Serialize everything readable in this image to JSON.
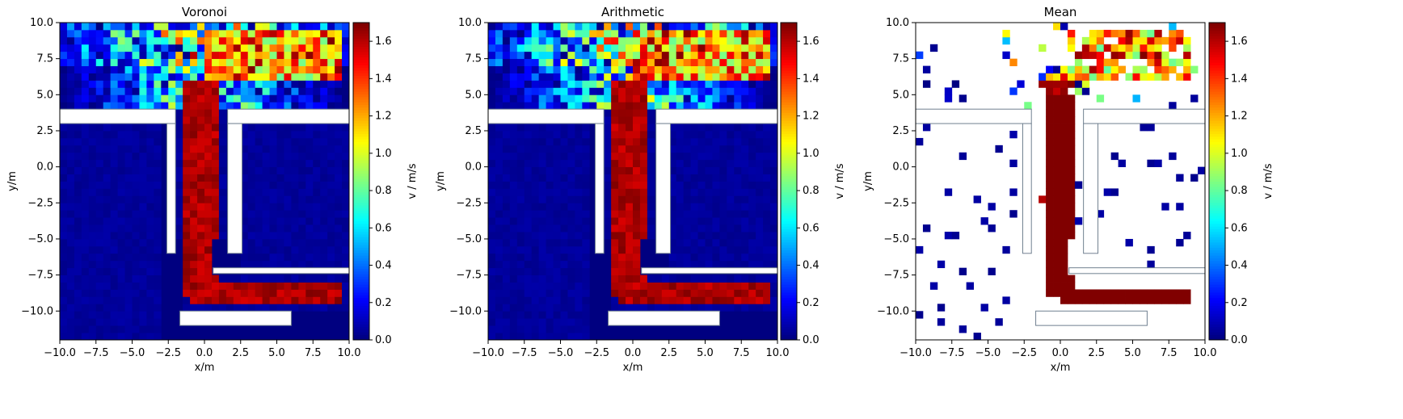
{
  "chart_data": [
    {
      "type": "heatmap",
      "title": "Voronoi",
      "xlabel": "x/m",
      "ylabel": "y/m",
      "xlim": [
        -10,
        10
      ],
      "ylim": [
        -12,
        10
      ],
      "xticks": [
        "−10.0",
        "−7.5",
        "−5.0",
        "−2.5",
        "0.0",
        "2.5",
        "5.0",
        "7.5",
        "10.0"
      ],
      "yticks": [
        "10.0",
        "7.5",
        "5.0",
        "2.5",
        "0.0",
        "−2.5",
        "−5.0",
        "−7.5",
        "−10.0"
      ],
      "colormap": "jet",
      "mode": "voronoi",
      "colorbar": {
        "label": "v / m/s",
        "range": [
          0,
          1.7
        ],
        "ticks": [
          "0.0",
          "0.2",
          "0.4",
          "0.6",
          "0.8",
          "1.0",
          "1.2",
          "1.4",
          "1.6"
        ]
      }
    },
    {
      "type": "heatmap",
      "title": "Arithmetic",
      "xlabel": "x/m",
      "ylabel": "y/m",
      "xlim": [
        -10,
        10
      ],
      "ylim": [
        -12,
        10
      ],
      "xticks": [
        "−10.0",
        "−7.5",
        "−5.0",
        "−2.5",
        "0.0",
        "2.5",
        "5.0",
        "7.5",
        "10.0"
      ],
      "yticks": [
        "10.0",
        "7.5",
        "5.0",
        "2.5",
        "0.0",
        "−2.5",
        "−5.0",
        "−7.5",
        "−10.0"
      ],
      "colormap": "jet",
      "mode": "arith",
      "colorbar": {
        "label": "v / m/s",
        "range": [
          0,
          1.7
        ],
        "ticks": [
          "0.0",
          "0.2",
          "0.4",
          "0.6",
          "0.8",
          "1.0",
          "1.2",
          "1.4",
          "1.6"
        ]
      }
    },
    {
      "type": "heatmap",
      "title": "Mean",
      "xlabel": "x/m",
      "ylabel": "y/m",
      "xlim": [
        -10,
        10
      ],
      "ylim": [
        -12,
        10
      ],
      "xticks": [
        "−10.0",
        "−7.5",
        "−5.0",
        "−2.5",
        "0.0",
        "2.5",
        "5.0",
        "7.5",
        "10.0"
      ],
      "yticks": [
        "10.0",
        "7.5",
        "5.0",
        "2.5",
        "0.0",
        "−2.5",
        "−5.0",
        "−7.5",
        "−10.0"
      ],
      "colormap": "jet",
      "mode": "mean",
      "colorbar": {
        "label": "v / m/s",
        "range": [
          0,
          1.7
        ],
        "ticks": [
          "0.0",
          "0.2",
          "0.4",
          "0.6",
          "0.8",
          "1.0",
          "1.2",
          "1.4",
          "1.6"
        ]
      }
    }
  ],
  "geometry_walls": {
    "corridor_outline": [
      [
        -10,
        4
      ],
      [
        -2,
        4
      ],
      [
        -2,
        -5
      ],
      [
        -2.5,
        -5
      ],
      [
        -2.5,
        -6
      ],
      [
        -1.7,
        -6
      ],
      [
        -1.7,
        -11
      ],
      [
        6,
        -11
      ],
      [
        6,
        -10
      ],
      [
        -0.8,
        -10
      ],
      [
        -0.8,
        -5
      ],
      [
        0.6,
        -5
      ],
      [
        0.6,
        -7.4
      ],
      [
        10,
        -7.4
      ],
      [
        10,
        -7
      ],
      [
        1.5,
        -7
      ],
      [
        1.5,
        -6
      ],
      [
        2.5,
        -6
      ],
      [
        2.5,
        -5
      ],
      [
        1.6,
        -5
      ],
      [
        1.6,
        4
      ],
      [
        10,
        4
      ],
      [
        10,
        3
      ],
      [
        2.6,
        3
      ],
      [
        2.6,
        -4.9
      ]
    ]
  }
}
